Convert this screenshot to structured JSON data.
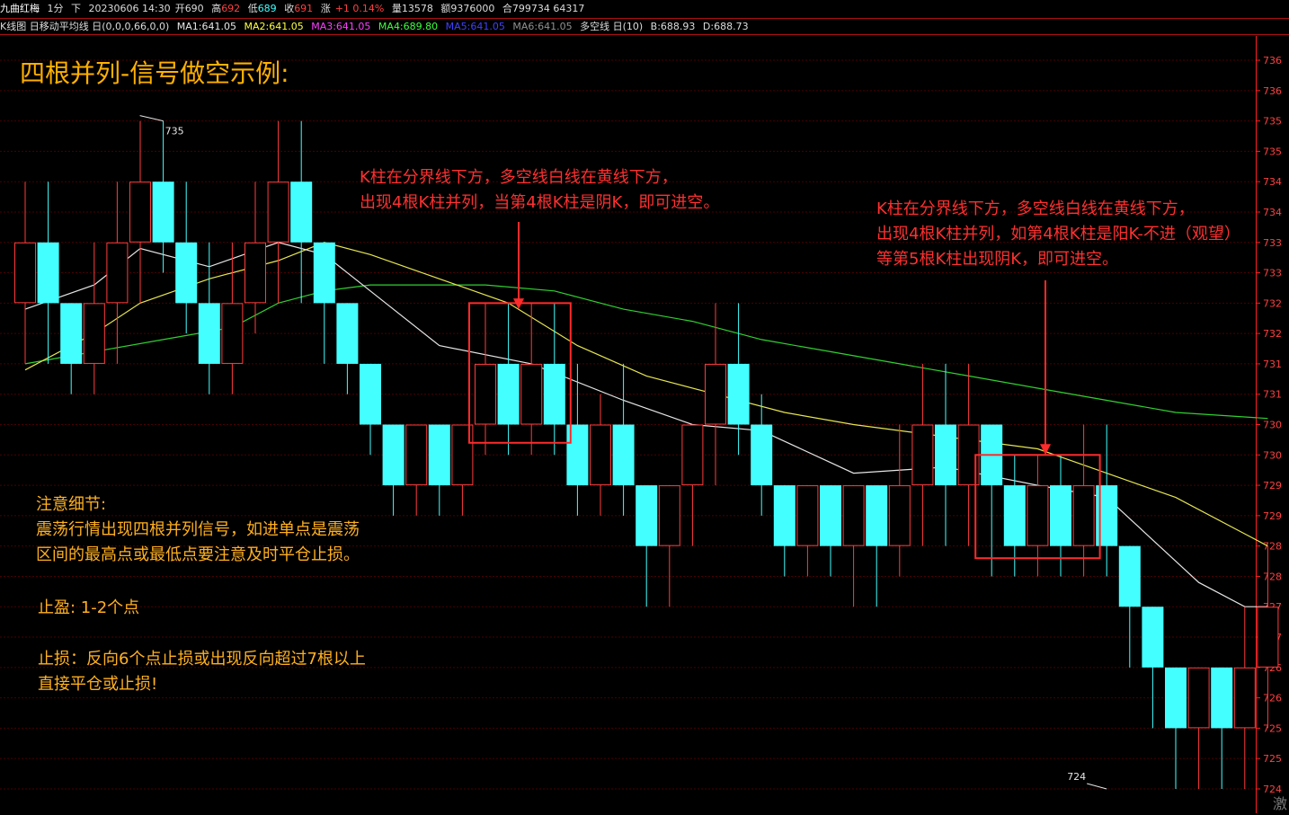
{
  "header": {
    "name": "九曲红梅",
    "period": "1分",
    "direction": "下",
    "datetime": "20230606 14:30",
    "open_label": "开",
    "open": "690",
    "high_label": "高",
    "high": "692",
    "low_label": "低",
    "low": "689",
    "close_label": "收",
    "close": "691",
    "change_label": "涨",
    "change": "+1 0.14%",
    "volume_label": "量",
    "volume": "13578",
    "amount_label": "额",
    "amount": "9376000",
    "extra": "合799734 64317"
  },
  "indicator_bar": {
    "title": "K线图 日移动平均线 日(0,0,0,66,0,0)",
    "ma1": "MA1:641.05",
    "ma2": "MA2:641.05",
    "ma3": "MA3:641.05",
    "ma4": "MA4:689.80",
    "ma5": "MA5:641.05",
    "ma6": "MA6:641.05",
    "multi_line": "多空线 日(10)",
    "b": "B:688.93",
    "d": "D:688.73",
    "colors": {
      "ma1": "#e6e6e6",
      "ma2": "#ffff40",
      "ma3": "#ff40ff",
      "ma4": "#40ff40",
      "ma5": "#4040ff",
      "ma6": "#909090"
    }
  },
  "annotations": {
    "title": "四根并列-信号做空示例:",
    "note1_line1": "K柱在分界线下方，多空线白线在黄线下方，",
    "note1_line2": "出现4根K柱并列，当第4根K柱是阴K，即可进空。",
    "note2_line1": "K柱在分界线下方，多空线白线在黄线下方，",
    "note2_line2": "出现4根K柱并列，如第4根K柱是阳K-不进（观望）",
    "note2_line3": "等第5根K柱出现阴K，即可进空。",
    "detail_title": "注意细节:",
    "detail_line1": "震荡行情出现四根并列信号，如进单点是震荡",
    "detail_line2": "区间的最高点或最低点要注意及时平仓止损。",
    "take_profit": "止盈:  1-2个点",
    "stop_loss_line1": "止损：反向6个点止损或出现反向超过7根以上",
    "stop_loss_line2": "直接平仓或止损!",
    "watermark": "激"
  },
  "chart_data": {
    "type": "candlestick",
    "colors": {
      "up": "#ff3c3c",
      "down": "#44ffff",
      "background": "#000000",
      "grid": "#4a0000",
      "axis": "#ff2020",
      "white_line": "#e6e6e6",
      "yellow_line": "#e6e650",
      "green_line": "#30d030",
      "box": "#ff2a2a"
    },
    "ylim": [
      723.6,
      736.4
    ],
    "y_ticks": [
      "736",
      "736",
      "735",
      "735",
      "734",
      "734",
      "733",
      "733",
      "732",
      "732",
      "731",
      "731",
      "730",
      "730",
      "729",
      "729",
      "728",
      "728",
      "727",
      "727",
      "726",
      "726",
      "725",
      "725",
      "724",
      "724"
    ],
    "y_tick_values": [
      736.0,
      735.5,
      735.0,
      734.5,
      734.0,
      733.5,
      733.0,
      732.5,
      732.0,
      731.5,
      731.0,
      730.5,
      730.0,
      729.5,
      729.0,
      728.5,
      728.0,
      727.5,
      727.0,
      726.5,
      726.0,
      725.5,
      725.0,
      724.5,
      724.0,
      723.5
    ],
    "candles": [
      {
        "o": 732.0,
        "c": 733.0,
        "h": 734.0,
        "l": 731.0
      },
      {
        "o": 733.0,
        "c": 732.0,
        "h": 734.0,
        "l": 731.0
      },
      {
        "o": 732.0,
        "c": 731.0,
        "h": 732.0,
        "l": 730.5
      },
      {
        "o": 731.0,
        "c": 732.0,
        "h": 733.0,
        "l": 730.5
      },
      {
        "o": 732.0,
        "c": 733.0,
        "h": 734.0,
        "l": 731.0
      },
      {
        "o": 733.0,
        "c": 734.0,
        "h": 735.0,
        "l": 732.0
      },
      {
        "o": 734.0,
        "c": 733.0,
        "h": 735.0,
        "l": 732.5
      },
      {
        "o": 733.0,
        "c": 732.0,
        "h": 734.0,
        "l": 731.5
      },
      {
        "o": 732.0,
        "c": 731.0,
        "h": 733.0,
        "l": 730.5
      },
      {
        "o": 731.0,
        "c": 732.0,
        "h": 733.0,
        "l": 730.5
      },
      {
        "o": 732.0,
        "c": 733.0,
        "h": 734.0,
        "l": 731.5
      },
      {
        "o": 733.0,
        "c": 734.0,
        "h": 735.0,
        "l": 732.0
      },
      {
        "o": 734.0,
        "c": 733.0,
        "h": 735.0,
        "l": 732.0
      },
      {
        "o": 733.0,
        "c": 732.0,
        "h": 733.0,
        "l": 731.0
      },
      {
        "o": 732.0,
        "c": 731.0,
        "h": 732.0,
        "l": 730.5
      },
      {
        "o": 731.0,
        "c": 730.0,
        "h": 731.0,
        "l": 729.5
      },
      {
        "o": 730.0,
        "c": 729.0,
        "h": 730.0,
        "l": 728.5
      },
      {
        "o": 729.0,
        "c": 730.0,
        "h": 730.0,
        "l": 728.5
      },
      {
        "o": 730.0,
        "c": 729.0,
        "h": 730.0,
        "l": 728.5
      },
      {
        "o": 729.0,
        "c": 730.0,
        "h": 730.0,
        "l": 728.5
      },
      {
        "o": 730.0,
        "c": 731.0,
        "h": 732.0,
        "l": 729.5
      },
      {
        "o": 731.0,
        "c": 730.0,
        "h": 732.0,
        "l": 729.5
      },
      {
        "o": 730.0,
        "c": 731.0,
        "h": 732.0,
        "l": 729.5
      },
      {
        "o": 731.0,
        "c": 730.0,
        "h": 732.0,
        "l": 729.5
      },
      {
        "o": 730.0,
        "c": 729.0,
        "h": 731.0,
        "l": 728.5
      },
      {
        "o": 729.0,
        "c": 730.0,
        "h": 730.5,
        "l": 728.5
      },
      {
        "o": 730.0,
        "c": 729.0,
        "h": 731.0,
        "l": 728.5
      },
      {
        "o": 729.0,
        "c": 728.0,
        "h": 729.0,
        "l": 727.0
      },
      {
        "o": 728.0,
        "c": 729.0,
        "h": 729.0,
        "l": 727.0
      },
      {
        "o": 729.0,
        "c": 730.0,
        "h": 730.0,
        "l": 728.0
      },
      {
        "o": 730.0,
        "c": 731.0,
        "h": 732.0,
        "l": 729.0
      },
      {
        "o": 731.0,
        "c": 730.0,
        "h": 732.0,
        "l": 729.5
      },
      {
        "o": 730.0,
        "c": 729.0,
        "h": 730.5,
        "l": 728.5
      },
      {
        "o": 729.0,
        "c": 728.0,
        "h": 729.0,
        "l": 727.5
      },
      {
        "o": 728.0,
        "c": 729.0,
        "h": 729.0,
        "l": 727.5
      },
      {
        "o": 729.0,
        "c": 728.0,
        "h": 729.0,
        "l": 727.5
      },
      {
        "o": 728.0,
        "c": 729.0,
        "h": 729.0,
        "l": 727.0
      },
      {
        "o": 729.0,
        "c": 728.0,
        "h": 729.0,
        "l": 727.0
      },
      {
        "o": 728.0,
        "c": 729.0,
        "h": 730.0,
        "l": 727.5
      },
      {
        "o": 729.0,
        "c": 730.0,
        "h": 731.0,
        "l": 728.0
      },
      {
        "o": 730.0,
        "c": 729.0,
        "h": 731.0,
        "l": 728.0
      },
      {
        "o": 729.0,
        "c": 730.0,
        "h": 731.0,
        "l": 728.0
      },
      {
        "o": 730.0,
        "c": 729.0,
        "h": 730.0,
        "l": 727.5
      },
      {
        "o": 729.0,
        "c": 728.0,
        "h": 729.5,
        "l": 727.5
      },
      {
        "o": 728.0,
        "c": 729.0,
        "h": 729.5,
        "l": 727.5
      },
      {
        "o": 729.0,
        "c": 728.0,
        "h": 729.5,
        "l": 727.5
      },
      {
        "o": 728.0,
        "c": 729.0,
        "h": 730.0,
        "l": 727.5
      },
      {
        "o": 729.0,
        "c": 728.0,
        "h": 730.0,
        "l": 727.5
      },
      {
        "o": 728.0,
        "c": 727.0,
        "h": 728.0,
        "l": 726.0
      },
      {
        "o": 727.0,
        "c": 726.0,
        "h": 727.0,
        "l": 725.0
      },
      {
        "o": 726.0,
        "c": 725.0,
        "h": 726.0,
        "l": 724.0
      },
      {
        "o": 725.0,
        "c": 726.0,
        "h": 726.0,
        "l": 724.0
      },
      {
        "o": 726.0,
        "c": 725.0,
        "h": 726.0,
        "l": 724.0
      },
      {
        "o": 725.0,
        "c": 726.0,
        "h": 727.0,
        "l": 724.0
      },
      {
        "o": 726.0,
        "c": 727.0,
        "h": 728.0,
        "l": 725.0
      }
    ],
    "white_line": [
      [
        0,
        731.9
      ],
      [
        3,
        732.3
      ],
      [
        5,
        732.9
      ],
      [
        8,
        732.6
      ],
      [
        11,
        733.0
      ],
      [
        13,
        732.8
      ],
      [
        15,
        732.2
      ],
      [
        18,
        731.3
      ],
      [
        22,
        731.0
      ],
      [
        26,
        730.4
      ],
      [
        29,
        730.0
      ],
      [
        32,
        729.9
      ],
      [
        36,
        729.2
      ],
      [
        40,
        729.3
      ],
      [
        44,
        729.0
      ],
      [
        47,
        728.8
      ],
      [
        49,
        728.1
      ],
      [
        51,
        727.4
      ],
      [
        53,
        727.0
      ],
      [
        54,
        727.0
      ]
    ],
    "yellow_line": [
      [
        0,
        730.9
      ],
      [
        3,
        731.5
      ],
      [
        5,
        732.0
      ],
      [
        8,
        732.4
      ],
      [
        11,
        732.7
      ],
      [
        13,
        733.0
      ],
      [
        15,
        732.8
      ],
      [
        18,
        732.4
      ],
      [
        21,
        732.0
      ],
      [
        24,
        731.3
      ],
      [
        27,
        730.8
      ],
      [
        30,
        730.5
      ],
      [
        33,
        730.2
      ],
      [
        36,
        730.0
      ],
      [
        40,
        729.8
      ],
      [
        44,
        729.6
      ],
      [
        47,
        729.2
      ],
      [
        50,
        728.8
      ],
      [
        53,
        728.2
      ],
      [
        54,
        728.0
      ]
    ],
    "green_line": [
      [
        0,
        731.0
      ],
      [
        3,
        731.2
      ],
      [
        6,
        731.4
      ],
      [
        9,
        731.6
      ],
      [
        11,
        732.0
      ],
      [
        13,
        732.2
      ],
      [
        15,
        732.3
      ],
      [
        17,
        732.3
      ],
      [
        20,
        732.3
      ],
      [
        23,
        732.2
      ],
      [
        26,
        731.9
      ],
      [
        29,
        731.7
      ],
      [
        32,
        731.4
      ],
      [
        35,
        731.2
      ],
      [
        38,
        731.0
      ],
      [
        41,
        730.8
      ],
      [
        44,
        730.6
      ],
      [
        47,
        730.4
      ],
      [
        50,
        730.2
      ],
      [
        54,
        730.1
      ]
    ],
    "price_labels": [
      {
        "i": 6,
        "text": "735",
        "y": 735.0
      },
      {
        "i": 47,
        "text": "724",
        "y": 724.0
      }
    ],
    "signal_boxes": [
      {
        "from": 20,
        "to": 23,
        "y_top": 732.0,
        "y_bottom": 729.7
      },
      {
        "from": 42,
        "to": 46,
        "y_top": 729.5,
        "y_bottom": 727.8
      }
    ],
    "arrows": [
      {
        "i": 22,
        "y_from": 733.0,
        "y_to": 731.9
      },
      {
        "i": 45,
        "y_from": 731.9,
        "y_to": 729.5
      }
    ]
  }
}
